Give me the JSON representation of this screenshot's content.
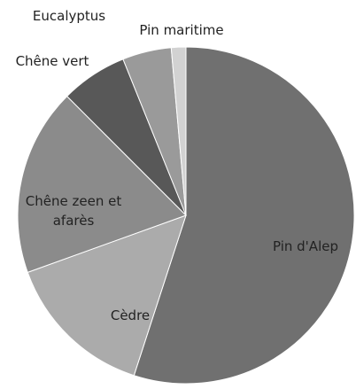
{
  "chart_data": {
    "type": "pie",
    "categories": [
      "Pin d'Alep",
      "Cèdre",
      "Chêne zeen et afarès",
      "Chêne vert",
      "Eucalyptus",
      "Pin maritime"
    ],
    "values": [
      55,
      14.5,
      18,
      6.4,
      4.7,
      1.4
    ],
    "colors": [
      "#707070",
      "#ababab",
      "#8b8b8b",
      "#585858",
      "#9a9a9a",
      "#d2d2d2"
    ]
  }
}
